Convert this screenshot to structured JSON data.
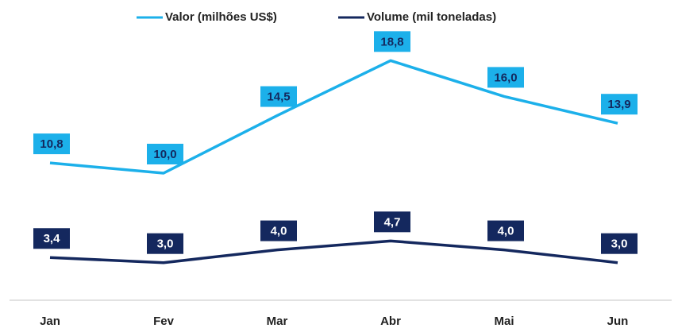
{
  "chart_data": {
    "type": "line",
    "categories": [
      "Jan",
      "Fev",
      "Mar",
      "Abr",
      "Mai",
      "Jun"
    ],
    "series": [
      {
        "name": "Valor (milhões US$)",
        "color": "#1cb0ea",
        "values": [
          10.8,
          10.0,
          14.5,
          18.8,
          16.0,
          13.9
        ],
        "value_labels": [
          "10,8",
          "10,0",
          "14,5",
          "18,8",
          "16,0",
          "13,9"
        ]
      },
      {
        "name": "Volume (mil toneladas)",
        "color": "#14285e",
        "values": [
          3.4,
          3.0,
          4.0,
          4.7,
          4.0,
          3.0
        ],
        "value_labels": [
          "3,4",
          "3,0",
          "4,0",
          "4,7",
          "4,0",
          "3,0"
        ]
      }
    ],
    "grid": false,
    "legend": "top"
  }
}
